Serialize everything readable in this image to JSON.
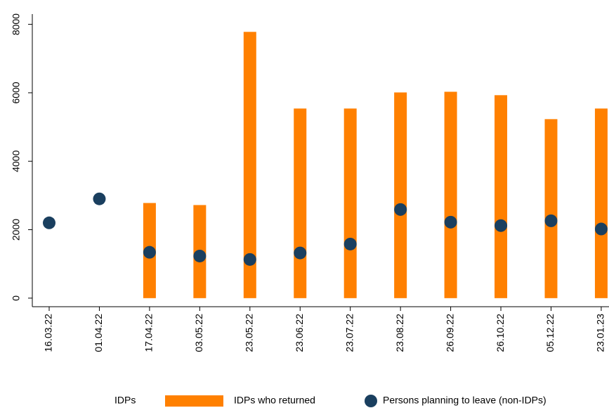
{
  "chart_data": {
    "type": "bar",
    "categories": [
      "16.03.22",
      "01.04.22",
      "17.04.22",
      "03.05.22",
      "23.05.22",
      "23.06.22",
      "23.07.22",
      "23.08.22",
      "26.09.22",
      "26.10.22",
      "05.12.22",
      "23.01.23"
    ],
    "series": [
      {
        "name": "IDPs who returned",
        "type": "bar",
        "color": "#ff8000",
        "values": [
          null,
          null,
          2780,
          2720,
          7780,
          5540,
          5540,
          6010,
          6030,
          5930,
          5230,
          5540
        ]
      },
      {
        "name": "Persons planning to leave (non-IDPs)",
        "type": "scatter",
        "color": "#1a3f5f",
        "values": [
          2200,
          2900,
          1340,
          1230,
          1130,
          1320,
          1580,
          2590,
          2220,
          2120,
          2260,
          2020
        ]
      }
    ],
    "legend_title": "IDPs",
    "ylim": [
      -250,
      8300
    ],
    "yticks": [
      0,
      2000,
      4000,
      6000,
      8000
    ],
    "grid": false,
    "legend": "bottom"
  }
}
